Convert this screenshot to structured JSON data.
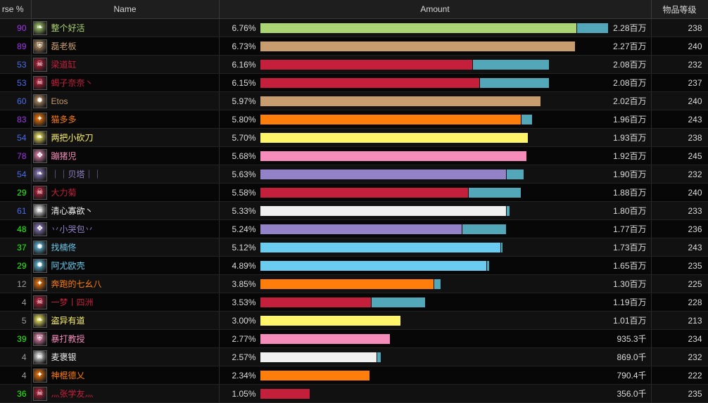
{
  "header": {
    "pct_label": "rse %",
    "name_label": "Name",
    "amount_label": "Amount",
    "ilvl_label": "物品等级"
  },
  "colors": {
    "pct_high": "#a335ee",
    "pct_blue": "#4a6cf0",
    "pct_green": "#1eff00",
    "pct_gray": "#9d9d9d",
    "secondary_bar": "#52a7b8"
  },
  "chart_data": {
    "type": "bar",
    "orientation": "horizontal",
    "title": "",
    "xlabel": "",
    "ylabel": "",
    "columns": [
      "rse %",
      "Name",
      "Amount",
      "物品等级"
    ],
    "rows": [
      {
        "parse": "90",
        "name": "整个好活",
        "percent": "6.76%",
        "amount_text": "2.28百万",
        "amount": 2.28,
        "amount_secondary": 0.23,
        "ilvl": "238",
        "color": "#abd473",
        "parse_color": "#a335ee",
        "icon": "leaf-icon"
      },
      {
        "parse": "89",
        "name": "磊老板",
        "percent": "6.73%",
        "amount_text": "2.27百万",
        "amount": 2.27,
        "amount_secondary": 0,
        "ilvl": "240",
        "color": "#c79c6e",
        "parse_color": "#a335ee",
        "icon": "shield-icon"
      },
      {
        "parse": "53",
        "name": "梁道缸",
        "percent": "6.16%",
        "amount_text": "2.08百万",
        "amount": 1.53,
        "amount_secondary": 0.55,
        "ilvl": "232",
        "color": "#c41f3b",
        "parse_color": "#4a6cf0",
        "icon": "skull-icon"
      },
      {
        "parse": "53",
        "name": "蝎子奈奈丶",
        "percent": "6.15%",
        "amount_text": "2.08百万",
        "amount": 1.58,
        "amount_secondary": 0.5,
        "ilvl": "237",
        "color": "#c41f3b",
        "parse_color": "#4a6cf0",
        "icon": "skull-icon"
      },
      {
        "parse": "60",
        "name": "Etos",
        "percent": "5.97%",
        "amount_text": "2.02百万",
        "amount": 2.02,
        "amount_secondary": 0,
        "ilvl": "240",
        "color": "#c79c6e",
        "parse_color": "#4a6cf0",
        "icon": "flame-icon"
      },
      {
        "parse": "83",
        "name": "猫多多",
        "percent": "5.80%",
        "amount_text": "1.96百万",
        "amount": 1.88,
        "amount_secondary": 0.08,
        "ilvl": "243",
        "color": "#ff7d0a",
        "parse_color": "#a335ee",
        "icon": "spark-icon"
      },
      {
        "parse": "54",
        "name": "两把小砍刀",
        "percent": "5.70%",
        "amount_text": "1.93百万",
        "amount": 1.93,
        "amount_secondary": 0,
        "ilvl": "238",
        "color": "#fff569",
        "parse_color": "#4a6cf0",
        "icon": "leaf-icon"
      },
      {
        "parse": "78",
        "name": "蹦猪児",
        "percent": "5.68%",
        "amount_text": "1.92百万",
        "amount": 1.92,
        "amount_secondary": 0,
        "ilvl": "245",
        "color": "#f58cba",
        "parse_color": "#a335ee",
        "icon": "rune-icon"
      },
      {
        "parse": "54",
        "name": "｜｜贝塔｜｜",
        "percent": "5.63%",
        "amount_text": "1.90百万",
        "amount": 1.77,
        "amount_secondary": 0.13,
        "ilvl": "232",
        "color": "#9482c9",
        "parse_color": "#4a6cf0",
        "icon": "leaf-icon"
      },
      {
        "parse": "29",
        "name": "大力菊",
        "percent": "5.58%",
        "amount_text": "1.88百万",
        "amount": 1.5,
        "amount_secondary": 0.38,
        "ilvl": "240",
        "color": "#c41f3b",
        "parse_color": "#1eff00",
        "icon": "skull-icon"
      },
      {
        "parse": "61",
        "name": "清心寡欲丶",
        "percent": "5.33%",
        "amount_text": "1.80百万",
        "amount": 1.77,
        "amount_secondary": 0.03,
        "ilvl": "233",
        "color": "#f0f0f0",
        "parse_color": "#4a6cf0",
        "icon": "skull-icon"
      },
      {
        "parse": "48",
        "name": "丷小哭包丷",
        "percent": "5.24%",
        "amount_text": "1.77百万",
        "amount": 1.45,
        "amount_secondary": 0.32,
        "ilvl": "236",
        "color": "#9482c9",
        "parse_color": "#1eff00",
        "icon": "rune-icon"
      },
      {
        "parse": "37",
        "name": "找楠佟",
        "percent": "5.12%",
        "amount_text": "1.73百万",
        "amount": 1.73,
        "amount_secondary": 0.01,
        "ilvl": "243",
        "color": "#69ccf0",
        "parse_color": "#1eff00",
        "icon": "flame-icon"
      },
      {
        "parse": "29",
        "name": "阿尤欧壳",
        "percent": "4.89%",
        "amount_text": "1.65百万",
        "amount": 1.63,
        "amount_secondary": 0.02,
        "ilvl": "235",
        "color": "#69ccf0",
        "parse_color": "#1eff00",
        "icon": "flame-icon"
      },
      {
        "parse": "12",
        "name": "奔跑的七幺八",
        "percent": "3.85%",
        "amount_text": "1.30百万",
        "amount": 1.25,
        "amount_secondary": 0.05,
        "ilvl": "225",
        "color": "#ff7d0a",
        "parse_color": "#9d9d9d",
        "icon": "spark-icon"
      },
      {
        "parse": "4",
        "name": "一梦丨四洲",
        "percent": "3.53%",
        "amount_text": "1.19百万",
        "amount": 0.8,
        "amount_secondary": 0.39,
        "ilvl": "228",
        "color": "#c41f3b",
        "parse_color": "#9d9d9d",
        "icon": "skull-icon"
      },
      {
        "parse": "5",
        "name": "盗异有道",
        "percent": "3.00%",
        "amount_text": "1.01百万",
        "amount": 1.01,
        "amount_secondary": 0,
        "ilvl": "213",
        "color": "#fff569",
        "parse_color": "#9d9d9d",
        "icon": "leaf-icon"
      },
      {
        "parse": "39",
        "name": "暴打教授",
        "percent": "2.77%",
        "amount_text": "935.3千",
        "amount": 0.935,
        "amount_secondary": 0,
        "ilvl": "234",
        "color": "#f58cba",
        "parse_color": "#1eff00",
        "icon": "shield-icon"
      },
      {
        "parse": "4",
        "name": "麦褒银",
        "percent": "2.57%",
        "amount_text": "869.0千",
        "amount": 0.84,
        "amount_secondary": 0.029,
        "ilvl": "232",
        "color": "#f0f0f0",
        "parse_color": "#9d9d9d",
        "icon": "skull-icon"
      },
      {
        "parse": "4",
        "name": "神棍德乂",
        "percent": "2.34%",
        "amount_text": "790.4千",
        "amount": 0.79,
        "amount_secondary": 0,
        "ilvl": "222",
        "color": "#ff7d0a",
        "parse_color": "#9d9d9d",
        "icon": "spark-icon"
      },
      {
        "parse": "36",
        "name": "灬张学友灬",
        "percent": "1.05%",
        "amount_text": "356.0千",
        "amount": 0.356,
        "amount_secondary": 0,
        "ilvl": "235",
        "color": "#c41f3b",
        "parse_color": "#1eff00",
        "icon": "skull-icon"
      }
    ]
  }
}
